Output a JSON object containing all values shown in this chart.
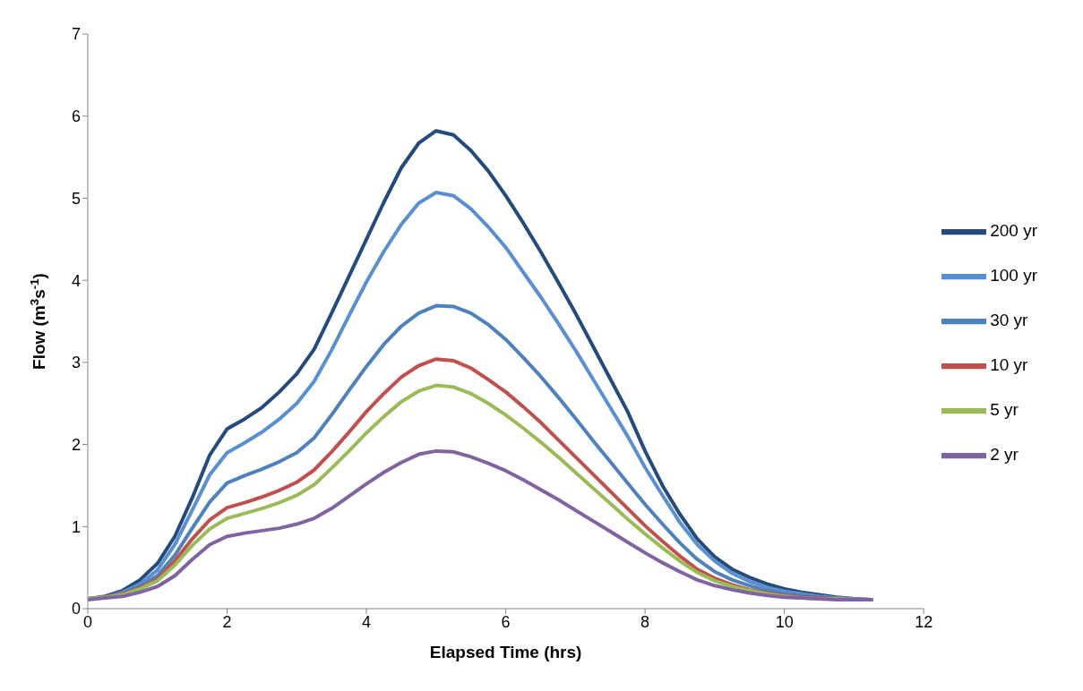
{
  "chart_data": {
    "type": "line",
    "xlabel": "Elapsed Time (hrs)",
    "ylabel": "Flow (m$^{3}$s$^{-1}$)",
    "x": [
      0,
      0.25,
      0.5,
      0.75,
      1,
      1.25,
      1.5,
      1.75,
      2,
      2.25,
      2.5,
      2.75,
      3,
      3.25,
      3.5,
      3.75,
      4,
      4.25,
      4.5,
      4.75,
      5,
      5.25,
      5.5,
      5.75,
      6,
      6.25,
      6.5,
      6.75,
      7,
      7.25,
      7.5,
      7.75,
      8,
      8.25,
      8.5,
      8.75,
      9,
      9.25,
      9.5,
      9.75,
      10,
      10.25,
      10.5,
      10.75,
      11,
      11.25
    ],
    "xlim": [
      0,
      12
    ],
    "xticks": [
      0,
      2,
      4,
      6,
      8,
      10,
      12
    ],
    "ylim": [
      0,
      7
    ],
    "yticks": [
      0,
      1,
      2,
      3,
      4,
      5,
      6,
      7
    ],
    "grid": false,
    "legend": "right",
    "marker": "none",
    "line_style": "solid",
    "series": [
      {
        "name": "200 yr",
        "color": "#254a7c",
        "values": [
          0.12,
          0.15,
          0.22,
          0.35,
          0.55,
          0.88,
          1.35,
          1.87,
          2.19,
          2.31,
          2.45,
          2.64,
          2.86,
          3.16,
          3.6,
          4.05,
          4.5,
          4.95,
          5.37,
          5.67,
          5.82,
          5.77,
          5.58,
          5.33,
          5.03,
          4.7,
          4.35,
          3.98,
          3.6,
          3.2,
          2.8,
          2.4,
          1.92,
          1.5,
          1.15,
          0.85,
          0.63,
          0.48,
          0.38,
          0.3,
          0.24,
          0.2,
          0.17,
          0.14,
          0.12,
          0.11
        ]
      },
      {
        "name": "100 yr",
        "color": "#5a8fd2",
        "values": [
          0.12,
          0.14,
          0.2,
          0.3,
          0.47,
          0.78,
          1.2,
          1.63,
          1.9,
          2.02,
          2.15,
          2.31,
          2.5,
          2.77,
          3.15,
          3.57,
          3.98,
          4.35,
          4.68,
          4.94,
          5.07,
          5.03,
          4.87,
          4.65,
          4.4,
          4.1,
          3.8,
          3.48,
          3.15,
          2.8,
          2.45,
          2.1,
          1.72,
          1.38,
          1.05,
          0.78,
          0.58,
          0.43,
          0.33,
          0.26,
          0.21,
          0.18,
          0.15,
          0.13,
          0.12,
          0.11
        ]
      },
      {
        "name": "30 yr",
        "color": "#4f81bd",
        "values": [
          0.12,
          0.14,
          0.19,
          0.27,
          0.4,
          0.65,
          0.98,
          1.3,
          1.53,
          1.62,
          1.7,
          1.79,
          1.9,
          2.08,
          2.36,
          2.66,
          2.95,
          3.22,
          3.44,
          3.6,
          3.69,
          3.68,
          3.6,
          3.46,
          3.28,
          3.06,
          2.83,
          2.58,
          2.32,
          2.05,
          1.79,
          1.53,
          1.27,
          1.03,
          0.8,
          0.6,
          0.45,
          0.35,
          0.28,
          0.22,
          0.18,
          0.16,
          0.14,
          0.12,
          0.11,
          0.11
        ]
      },
      {
        "name": "10 yr",
        "color": "#c0504d",
        "values": [
          0.12,
          0.14,
          0.18,
          0.25,
          0.36,
          0.58,
          0.85,
          1.08,
          1.23,
          1.29,
          1.36,
          1.44,
          1.54,
          1.69,
          1.91,
          2.15,
          2.4,
          2.62,
          2.82,
          2.96,
          3.04,
          3.02,
          2.93,
          2.79,
          2.64,
          2.46,
          2.27,
          2.06,
          1.85,
          1.64,
          1.43,
          1.22,
          1.01,
          0.82,
          0.64,
          0.48,
          0.37,
          0.29,
          0.23,
          0.19,
          0.16,
          0.14,
          0.13,
          0.12,
          0.11,
          0.11
        ]
      },
      {
        "name": "5 yr",
        "color": "#9bbb59",
        "values": [
          0.12,
          0.14,
          0.17,
          0.24,
          0.34,
          0.53,
          0.77,
          0.97,
          1.1,
          1.16,
          1.22,
          1.29,
          1.38,
          1.51,
          1.71,
          1.92,
          2.14,
          2.34,
          2.52,
          2.65,
          2.72,
          2.7,
          2.62,
          2.5,
          2.36,
          2.2,
          2.03,
          1.85,
          1.66,
          1.47,
          1.28,
          1.09,
          0.91,
          0.74,
          0.58,
          0.44,
          0.34,
          0.27,
          0.22,
          0.18,
          0.15,
          0.13,
          0.12,
          0.12,
          0.11,
          0.11
        ]
      },
      {
        "name": "2 yr",
        "color": "#8064a2",
        "values": [
          0.11,
          0.13,
          0.15,
          0.2,
          0.27,
          0.4,
          0.6,
          0.78,
          0.88,
          0.92,
          0.95,
          0.98,
          1.03,
          1.1,
          1.22,
          1.37,
          1.52,
          1.66,
          1.78,
          1.88,
          1.92,
          1.91,
          1.85,
          1.77,
          1.68,
          1.57,
          1.45,
          1.33,
          1.2,
          1.07,
          0.94,
          0.81,
          0.68,
          0.56,
          0.45,
          0.35,
          0.28,
          0.23,
          0.19,
          0.16,
          0.14,
          0.13,
          0.12,
          0.11,
          0.11,
          0.11
        ]
      }
    ]
  }
}
